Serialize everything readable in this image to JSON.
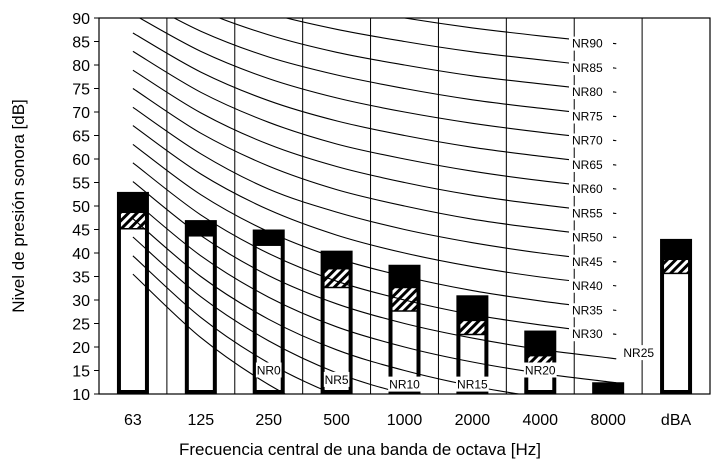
{
  "chart_data": {
    "type": "bar",
    "xlabel": "Frecuencia central de una banda de octava [Hz]",
    "ylabel": "Nivel de presión sonora [dB]",
    "ylim": [
      10,
      90
    ],
    "yticks": [
      10,
      15,
      20,
      25,
      30,
      35,
      40,
      45,
      50,
      55,
      60,
      65,
      70,
      75,
      80,
      85,
      90
    ],
    "grid": "vertical",
    "categories": [
      "63",
      "125",
      "250",
      "500",
      "1000",
      "2000",
      "4000",
      "8000",
      "dBA"
    ],
    "bars": [
      {
        "category": "63",
        "white_top": 45,
        "band": [
          45,
          48.5
        ],
        "total": 53
      },
      {
        "category": "125",
        "white_top": 43.5,
        "band": [
          43.5,
          43.5
        ],
        "total": 47
      },
      {
        "category": "250",
        "white_top": 41.5,
        "band": [
          41.5,
          41.5
        ],
        "total": 45
      },
      {
        "category": "500",
        "white_top": 32.5,
        "band": [
          32.5,
          36.5
        ],
        "total": 40.5
      },
      {
        "category": "1000",
        "white_top": 27.5,
        "band": [
          27.5,
          32.5
        ],
        "total": 37.5
      },
      {
        "category": "2000",
        "white_top": 22.5,
        "band": [
          22.5,
          25.5
        ],
        "total": 31
      },
      {
        "category": "4000",
        "white_top": 15.5,
        "band": [
          15.5,
          18
        ],
        "total": 23.5
      },
      {
        "category": "8000",
        "white_top": 10,
        "band": [
          10,
          10
        ],
        "total": 12.5
      },
      {
        "category": "dBA",
        "white_top": 35.5,
        "band": [
          35.5,
          38.5
        ],
        "total": 43
      }
    ],
    "nr_curves": [
      {
        "name": "NR0",
        "values": [
          35.5,
          22,
          12,
          4.8,
          0,
          -3.5,
          -6.1,
          -8
        ]
      },
      {
        "name": "NR5",
        "values": [
          39.4,
          26.3,
          16.6,
          9.7,
          5,
          1.6,
          -1,
          -2.8
        ]
      },
      {
        "name": "NR10",
        "values": [
          43.4,
          30.7,
          21.3,
          14.5,
          10,
          6.6,
          4.2,
          2.3
        ]
      },
      {
        "name": "NR15",
        "values": [
          47.3,
          35,
          25.9,
          19.4,
          15,
          11.7,
          9.3,
          7.4
        ]
      },
      {
        "name": "NR20",
        "values": [
          51.3,
          39.4,
          30.6,
          24.3,
          20,
          16.8,
          14.4,
          12.6
        ]
      },
      {
        "name": "NR25",
        "values": [
          55.2,
          43.7,
          35.2,
          29.2,
          25,
          21.9,
          19.5,
          17.7
        ]
      },
      {
        "name": "NR30",
        "values": [
          59.2,
          48.1,
          39.9,
          34,
          30,
          26.9,
          24.7,
          22.9
        ]
      },
      {
        "name": "NR35",
        "values": [
          63.1,
          52.4,
          44.5,
          38.9,
          35,
          32,
          29.8,
          28
        ]
      },
      {
        "name": "NR40",
        "values": [
          67.1,
          56.8,
          49.2,
          43.8,
          40,
          37.1,
          34.9,
          33.2
        ]
      },
      {
        "name": "NR45",
        "values": [
          71,
          61.1,
          53.6,
          48.7,
          45,
          42.2,
          40,
          38.3
        ]
      },
      {
        "name": "NR50",
        "values": [
          75,
          65.5,
          58.5,
          53.5,
          50,
          47.2,
          45.2,
          43.5
        ]
      },
      {
        "name": "NR55",
        "values": [
          78.9,
          69.8,
          63.1,
          58.4,
          55,
          52.3,
          50.3,
          48.6
        ]
      },
      {
        "name": "NR60",
        "values": [
          82.9,
          74.2,
          67.8,
          63.2,
          60,
          57.4,
          55.4,
          53.8
        ]
      },
      {
        "name": "NR65",
        "values": [
          86.8,
          78.5,
          72.4,
          68.1,
          65,
          62.5,
          60.6,
          58.9
        ]
      },
      {
        "name": "NR70",
        "values": [
          90.8,
          82.9,
          77.1,
          73,
          70,
          67.6,
          65.7,
          64.1
        ]
      },
      {
        "name": "NR75",
        "values": [
          94.7,
          87.2,
          81.7,
          77.9,
          75,
          72.6,
          70.8,
          69.2
        ]
      },
      {
        "name": "NR80",
        "values": [
          98.7,
          91.6,
          86.4,
          82.7,
          80,
          77.7,
          76,
          74.4
        ]
      },
      {
        "name": "NR85",
        "values": [
          102.6,
          95.9,
          91,
          87.6,
          85,
          82.8,
          81.1,
          79.5
        ]
      },
      {
        "name": "NR90",
        "values": [
          106.6,
          100.3,
          95.7,
          92.5,
          90,
          87.9,
          86.2,
          84.7
        ]
      }
    ],
    "inline_labels": [
      {
        "text": "NR0",
        "cat": 2,
        "y": 15
      },
      {
        "text": "NR5",
        "cat": 3,
        "y": 13
      },
      {
        "text": "NR10",
        "cat": 4,
        "y": 12
      },
      {
        "text": "NR15",
        "cat": 5,
        "y": 12
      },
      {
        "text": "NR20",
        "cat": 6,
        "y": 15
      },
      {
        "text": "NR25",
        "cat": 7,
        "y": 18.7
      }
    ],
    "colors": {
      "bar_fill": "#000000",
      "bar_inner": "#ffffff",
      "curve": "#000000",
      "grid": "#000000"
    }
  }
}
